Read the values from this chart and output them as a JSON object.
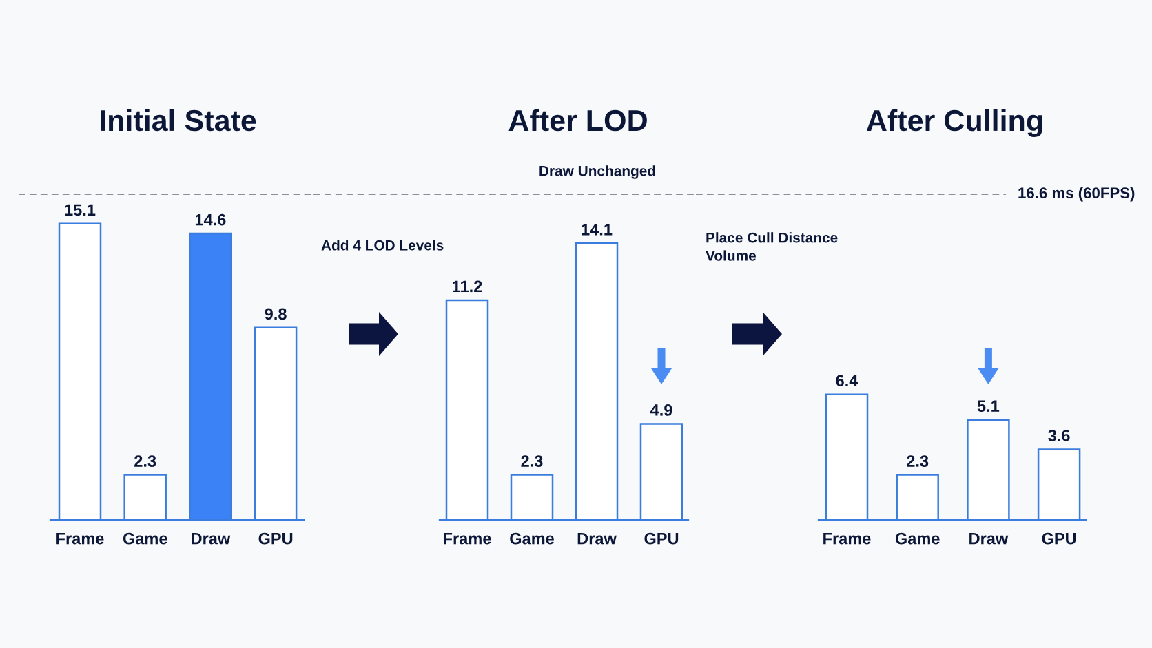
{
  "chart_data": [
    {
      "type": "bar",
      "title": "Initial State",
      "categories": [
        "Frame",
        "Game",
        "Draw",
        "GPU"
      ],
      "values": [
        15.1,
        2.3,
        14.6,
        9.8
      ],
      "colors": [
        "#ffffff",
        "#ffffff",
        "#3b82f6",
        "#ffffff"
      ],
      "data_labels": true,
      "tick_labels": "x",
      "ref_lines": [
        {
          "axis": "y",
          "value": 16.6,
          "color": "#8a8f98",
          "line_style": "dashed"
        }
      ]
    },
    {
      "type": "bar",
      "title": "After LOD",
      "categories": [
        "Frame",
        "Game",
        "Draw",
        "GPU"
      ],
      "values": [
        11.2,
        2.3,
        14.1,
        4.9
      ],
      "colors": [
        "#ffffff",
        "#ffffff",
        "#ffffff",
        "#ffffff"
      ],
      "data_labels": true,
      "tick_labels": "x",
      "annotations": [
        "Add 4 LOD Levels",
        "Draw Unchanged"
      ],
      "ref_lines": [
        {
          "axis": "y",
          "value": 16.6,
          "color": "#8a8f98",
          "line_style": "dashed"
        }
      ]
    },
    {
      "type": "bar",
      "title": "After Culling",
      "categories": [
        "Frame",
        "Game",
        "Draw",
        "GPU"
      ],
      "values": [
        6.4,
        2.3,
        5.1,
        3.6
      ],
      "colors": [
        "#ffffff",
        "#ffffff",
        "#ffffff",
        "#ffffff"
      ],
      "data_labels": true,
      "tick_labels": "x",
      "annotations": [
        "Place Cull Distance\nVolume"
      ],
      "ref_lines": [
        {
          "axis": "y",
          "value": 16.6,
          "label": "16.6 ms (60FPS)",
          "color": "#8a8f98",
          "line_style": "dashed"
        }
      ]
    }
  ]
}
